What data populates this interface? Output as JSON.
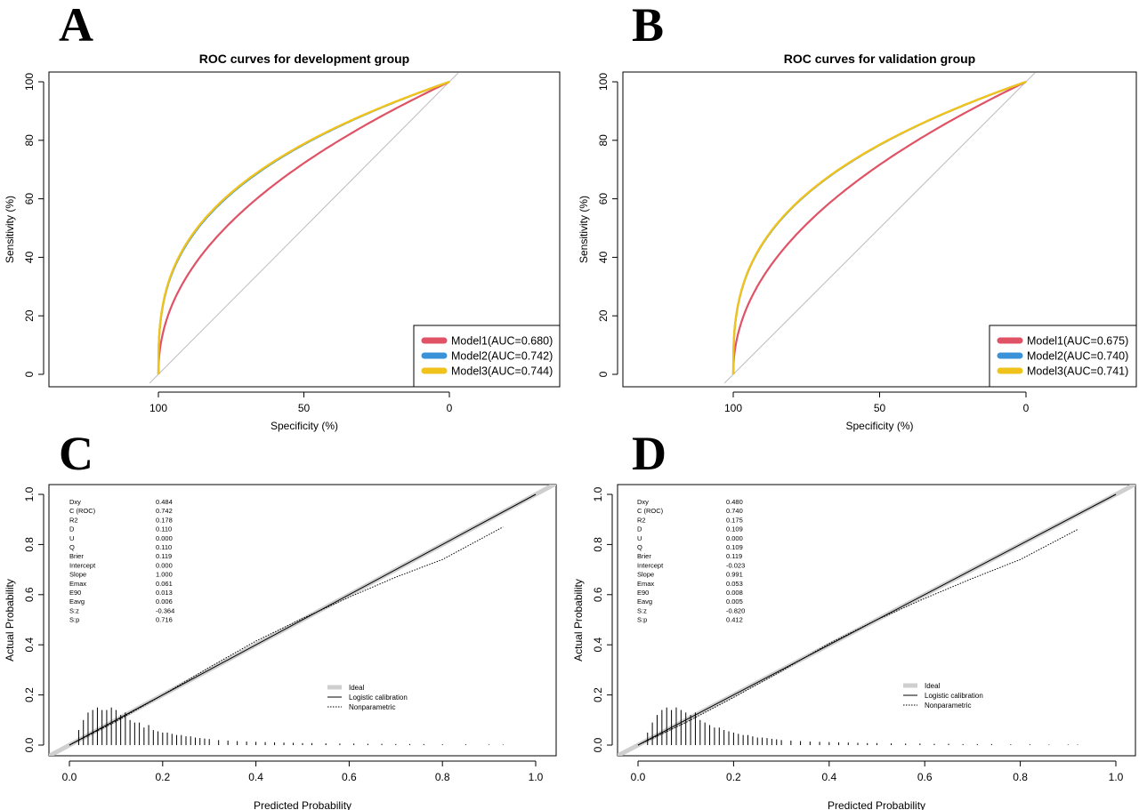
{
  "panel_labels": [
    "A",
    "B",
    "C",
    "D"
  ],
  "chart_data": [
    {
      "panel": "A",
      "type": "line",
      "title": "ROC curves for development group",
      "xlabel": "Specificity (%)",
      "ylabel": "Sensitivity (%)",
      "x_reversed": true,
      "xticks": [
        "100",
        "50",
        "0"
      ],
      "yticks": [
        "0",
        "20",
        "40",
        "60",
        "80",
        "100"
      ],
      "legend_position": "bottom-right",
      "series": [
        {
          "name": "Model1(AUC=0.680)",
          "auc": 0.68,
          "color": "#e05265"
        },
        {
          "name": "Model2(AUC=0.742)",
          "auc": 0.742,
          "color": "#3a93d8"
        },
        {
          "name": "Model3(AUC=0.744)",
          "auc": 0.744,
          "color": "#efc31c"
        }
      ]
    },
    {
      "panel": "B",
      "type": "line",
      "title": "ROC curves for validation group",
      "xlabel": "Specificity (%)",
      "ylabel": "Sensitivity (%)",
      "x_reversed": true,
      "xticks": [
        "100",
        "50",
        "0"
      ],
      "yticks": [
        "0",
        "20",
        "40",
        "60",
        "80",
        "100"
      ],
      "legend_position": "bottom-right",
      "series": [
        {
          "name": "Model1(AUC=0.675)",
          "auc": 0.675,
          "color": "#e05265"
        },
        {
          "name": "Model2(AUC=0.740)",
          "auc": 0.74,
          "color": "#3a93d8"
        },
        {
          "name": "Model3(AUC=0.741)",
          "auc": 0.741,
          "color": "#efc31c"
        }
      ]
    },
    {
      "panel": "C",
      "type": "line",
      "title": "",
      "xlabel": "Predicted Probability",
      "ylabel": "Actual Probability",
      "xticks": [
        "0.0",
        "0.2",
        "0.4",
        "0.6",
        "0.8",
        "1.0"
      ],
      "yticks": [
        "0.0",
        "0.2",
        "0.4",
        "0.6",
        "0.8",
        "1.0"
      ],
      "stats": [
        [
          "Dxy",
          "0.484"
        ],
        [
          "C (ROC)",
          "0.742"
        ],
        [
          "R2",
          "0.178"
        ],
        [
          "D",
          "0.110"
        ],
        [
          "U",
          "0.000"
        ],
        [
          "Q",
          "0.110"
        ],
        [
          "Brier",
          "0.119"
        ],
        [
          "Intercept",
          "0.000"
        ],
        [
          "Slope",
          "1.000"
        ],
        [
          "Emax",
          "0.061"
        ],
        [
          "E90",
          "0.013"
        ],
        [
          "Eavg",
          "0.006"
        ],
        [
          "S:z",
          "-0.364"
        ],
        [
          "S:p",
          "0.716"
        ]
      ],
      "legend": [
        "Ideal",
        "Logistic calibration",
        "Nonparametric"
      ],
      "nonparametric": [
        [
          0.0,
          0.0
        ],
        [
          0.1,
          0.095
        ],
        [
          0.2,
          0.2
        ],
        [
          0.3,
          0.31
        ],
        [
          0.4,
          0.415
        ],
        [
          0.5,
          0.505
        ],
        [
          0.6,
          0.59
        ],
        [
          0.7,
          0.67
        ],
        [
          0.8,
          0.74
        ],
        [
          0.93,
          0.87
        ]
      ],
      "histogram": [
        [
          0.02,
          0.06
        ],
        [
          0.03,
          0.1
        ],
        [
          0.04,
          0.13
        ],
        [
          0.05,
          0.14
        ],
        [
          0.06,
          0.15
        ],
        [
          0.07,
          0.14
        ],
        [
          0.08,
          0.14
        ],
        [
          0.09,
          0.15
        ],
        [
          0.1,
          0.14
        ],
        [
          0.11,
          0.12
        ],
        [
          0.12,
          0.13
        ],
        [
          0.13,
          0.1
        ],
        [
          0.14,
          0.09
        ],
        [
          0.15,
          0.09
        ],
        [
          0.16,
          0.07
        ],
        [
          0.17,
          0.08
        ],
        [
          0.18,
          0.06
        ],
        [
          0.19,
          0.055
        ],
        [
          0.2,
          0.05
        ],
        [
          0.21,
          0.05
        ],
        [
          0.22,
          0.045
        ],
        [
          0.23,
          0.04
        ],
        [
          0.24,
          0.04
        ],
        [
          0.25,
          0.035
        ],
        [
          0.26,
          0.035
        ],
        [
          0.27,
          0.03
        ],
        [
          0.28,
          0.028
        ],
        [
          0.29,
          0.026
        ],
        [
          0.3,
          0.024
        ],
        [
          0.32,
          0.02
        ],
        [
          0.34,
          0.018
        ],
        [
          0.36,
          0.016
        ],
        [
          0.38,
          0.014
        ],
        [
          0.4,
          0.013
        ],
        [
          0.42,
          0.012
        ],
        [
          0.44,
          0.011
        ],
        [
          0.46,
          0.01
        ],
        [
          0.48,
          0.009
        ],
        [
          0.5,
          0.008
        ],
        [
          0.52,
          0.008
        ],
        [
          0.55,
          0.007
        ],
        [
          0.58,
          0.006
        ],
        [
          0.61,
          0.006
        ],
        [
          0.64,
          0.005
        ],
        [
          0.67,
          0.005
        ],
        [
          0.7,
          0.004
        ],
        [
          0.73,
          0.004
        ],
        [
          0.76,
          0.004
        ],
        [
          0.8,
          0.003
        ],
        [
          0.85,
          0.003
        ],
        [
          0.9,
          0.002
        ],
        [
          0.93,
          0.002
        ]
      ]
    },
    {
      "panel": "D",
      "type": "line",
      "title": "",
      "xlabel": "Predicted Probability",
      "ylabel": "Actual Probability",
      "xticks": [
        "0.0",
        "0.2",
        "0.4",
        "0.6",
        "0.8",
        "1.0"
      ],
      "yticks": [
        "0.0",
        "0.2",
        "0.4",
        "0.6",
        "0.8",
        "1.0"
      ],
      "stats": [
        [
          "Dxy",
          "0.480"
        ],
        [
          "C (ROC)",
          "0.740"
        ],
        [
          "R2",
          "0.175"
        ],
        [
          "D",
          "0.109"
        ],
        [
          "U",
          "0.000"
        ],
        [
          "Q",
          "0.109"
        ],
        [
          "Brier",
          "0.119"
        ],
        [
          "Intercept",
          "-0.023"
        ],
        [
          "Slope",
          "0.991"
        ],
        [
          "Emax",
          "0.053"
        ],
        [
          "E90",
          "0.008"
        ],
        [
          "Eavg",
          "0.005"
        ],
        [
          "S:z",
          "-0.820"
        ],
        [
          "S:p",
          "0.412"
        ]
      ],
      "legend": [
        "Ideal",
        "Logistic calibration",
        "Nonparametric"
      ],
      "nonparametric": [
        [
          0.0,
          0.0
        ],
        [
          0.1,
          0.09
        ],
        [
          0.2,
          0.19
        ],
        [
          0.3,
          0.295
        ],
        [
          0.4,
          0.405
        ],
        [
          0.5,
          0.5
        ],
        [
          0.6,
          0.585
        ],
        [
          0.7,
          0.665
        ],
        [
          0.8,
          0.74
        ],
        [
          0.92,
          0.86
        ]
      ],
      "histogram": [
        [
          0.02,
          0.05
        ],
        [
          0.03,
          0.09
        ],
        [
          0.04,
          0.12
        ],
        [
          0.05,
          0.14
        ],
        [
          0.06,
          0.15
        ],
        [
          0.07,
          0.14
        ],
        [
          0.08,
          0.15
        ],
        [
          0.09,
          0.14
        ],
        [
          0.1,
          0.13
        ],
        [
          0.11,
          0.12
        ],
        [
          0.12,
          0.13
        ],
        [
          0.13,
          0.1
        ],
        [
          0.14,
          0.09
        ],
        [
          0.15,
          0.08
        ],
        [
          0.16,
          0.07
        ],
        [
          0.17,
          0.07
        ],
        [
          0.18,
          0.06
        ],
        [
          0.19,
          0.055
        ],
        [
          0.2,
          0.05
        ],
        [
          0.21,
          0.045
        ],
        [
          0.22,
          0.04
        ],
        [
          0.23,
          0.04
        ],
        [
          0.24,
          0.035
        ],
        [
          0.25,
          0.03
        ],
        [
          0.26,
          0.03
        ],
        [
          0.27,
          0.028
        ],
        [
          0.28,
          0.025
        ],
        [
          0.29,
          0.023
        ],
        [
          0.3,
          0.02
        ],
        [
          0.32,
          0.018
        ],
        [
          0.34,
          0.016
        ],
        [
          0.36,
          0.014
        ],
        [
          0.38,
          0.013
        ],
        [
          0.4,
          0.012
        ],
        [
          0.42,
          0.011
        ],
        [
          0.44,
          0.01
        ],
        [
          0.46,
          0.009
        ],
        [
          0.48,
          0.008
        ],
        [
          0.5,
          0.008
        ],
        [
          0.53,
          0.007
        ],
        [
          0.56,
          0.006
        ],
        [
          0.59,
          0.006
        ],
        [
          0.62,
          0.005
        ],
        [
          0.65,
          0.005
        ],
        [
          0.68,
          0.004
        ],
        [
          0.71,
          0.004
        ],
        [
          0.74,
          0.004
        ],
        [
          0.78,
          0.003
        ],
        [
          0.82,
          0.003
        ],
        [
          0.86,
          0.002
        ],
        [
          0.9,
          0.002
        ],
        [
          0.92,
          0.002
        ]
      ]
    }
  ]
}
